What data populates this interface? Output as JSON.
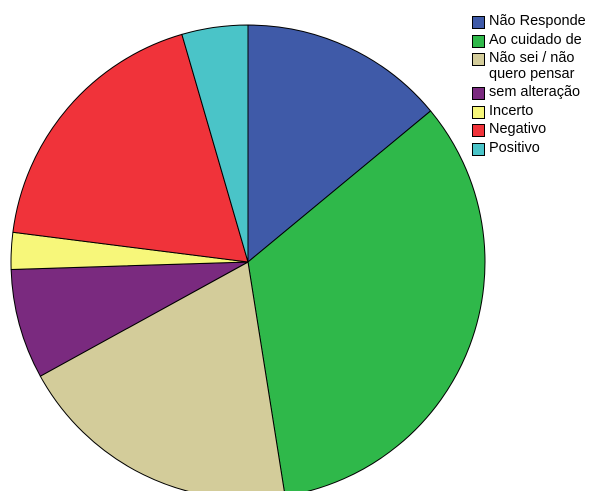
{
  "chart_data": {
    "type": "pie",
    "title": "",
    "start": "top (12 o'clock), clockwise",
    "slices": [
      {
        "label": "Não Responde",
        "value": 14.0,
        "color": "#3f5aa8"
      },
      {
        "label": "Ao cuidado de",
        "value": 33.5,
        "color": "#2fb84a"
      },
      {
        "label": "Não sei / não\nquero pensar",
        "value": 19.5,
        "color": "#d3cc9a"
      },
      {
        "label": "sem alteração",
        "value": 7.5,
        "color": "#7a2a7f"
      },
      {
        "label": "Incerto",
        "value": 2.5,
        "color": "#f7f77a"
      },
      {
        "label": "Negativo",
        "value": 18.5,
        "color": "#f0333a"
      },
      {
        "label": "Positivo",
        "value": 4.5,
        "color": "#4ac4c8"
      }
    ],
    "legend": {
      "position": "top-right"
    }
  }
}
